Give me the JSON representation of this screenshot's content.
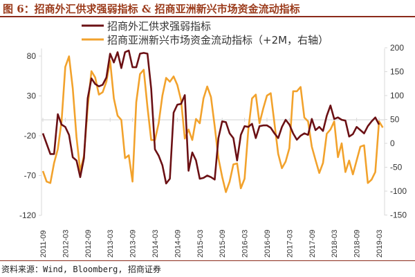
{
  "header": {
    "title": "图 6：招商外汇供求强弱指标 & 招商亚洲新兴市场资金流动指标"
  },
  "footer": {
    "source": "资料来源：Wind, Bloomberg, 招商证券"
  },
  "chart_data": {
    "type": "line",
    "title": "图 6：招商外汇供求强弱指标 & 招商亚洲新兴市场资金流动指标",
    "xlabel": "",
    "ylabel": "",
    "x_start": "2011-09",
    "x_tick_labels": [
      "2011-09",
      "2012-03",
      "2012-09",
      "2013-03",
      "2013-09",
      "2014-03",
      "2014-09",
      "2015-03",
      "2015-09",
      "2016-03",
      "2016-09",
      "2017-03",
      "2017-09",
      "2018-03",
      "2018-09",
      "2019-03"
    ],
    "y_left": {
      "range": [
        -120,
        80
      ],
      "ticks": [
        "80",
        "30",
        "-20",
        "-70",
        "-120"
      ],
      "tick_values": [
        80,
        30,
        -20,
        -70,
        -120
      ]
    },
    "y_right": {
      "range": [
        -150,
        200
      ],
      "ticks": [
        "200",
        "150",
        "100",
        "50",
        "0",
        "-50",
        "-100",
        "-150"
      ],
      "tick_values": [
        200,
        150,
        100,
        50,
        0,
        -50,
        -100,
        -150
      ]
    },
    "gridline_left_value": 0,
    "legend_placement": "top",
    "series": [
      {
        "name": "招商外汇供求强弱指标",
        "axis": "left",
        "color": "#6b1014",
        "values": [
          -17,
          -30,
          -43,
          -43,
          7,
          -6,
          -9,
          -19,
          -47,
          -51,
          -72,
          -48,
          27,
          52,
          45,
          42,
          44,
          53,
          83,
          72,
          85,
          65,
          85,
          87,
          66,
          66,
          83,
          84,
          83,
          39,
          -37,
          -45,
          -57,
          -80,
          -74,
          9,
          19,
          20,
          31,
          -64,
          -41,
          -51,
          -74,
          -73,
          -70,
          -72,
          -75,
          -23,
          -2,
          -3,
          -17,
          -23,
          -51,
          -19,
          -8,
          -9,
          -5,
          -23,
          -8,
          -7,
          -7,
          -10,
          -17,
          -23,
          -9,
          0,
          -6,
          -17,
          -25,
          -20,
          -17,
          -19,
          1,
          -13,
          -9,
          -14,
          5,
          18,
          1,
          3,
          0,
          -1,
          -21,
          -18,
          -9,
          -13,
          -17,
          -8,
          -2,
          3,
          -6
        ]
      },
      {
        "name": "招商亚洲新兴市场资金流动指标（+2M，右轴）",
        "axis": "right",
        "color": "#f2a22c",
        "values": [
          -58,
          -80,
          -83,
          -41,
          -12,
          46,
          160,
          182,
          115,
          13,
          -58,
          -26,
          76,
          151,
          138,
          102,
          107,
          129,
          173,
          94,
          58,
          49,
          -31,
          -25,
          -80,
          86,
          145,
          154,
          76,
          7,
          7,
          42,
          100,
          137,
          129,
          140,
          122,
          90,
          10,
          29,
          7,
          51,
          42,
          94,
          119,
          97,
          36,
          -31,
          -70,
          -102,
          -80,
          -44,
          -42,
          -94,
          -74,
          28,
          94,
          102,
          42,
          73,
          100,
          105,
          42,
          -22,
          -52,
          -38,
          -10,
          109,
          109,
          118,
          54,
          46,
          -7,
          -35,
          -62,
          -41,
          20,
          29,
          46,
          -29,
          0,
          -60,
          -36,
          -65,
          -36,
          -7,
          -4,
          -83,
          -76,
          -60,
          46,
          33
        ]
      }
    ]
  }
}
